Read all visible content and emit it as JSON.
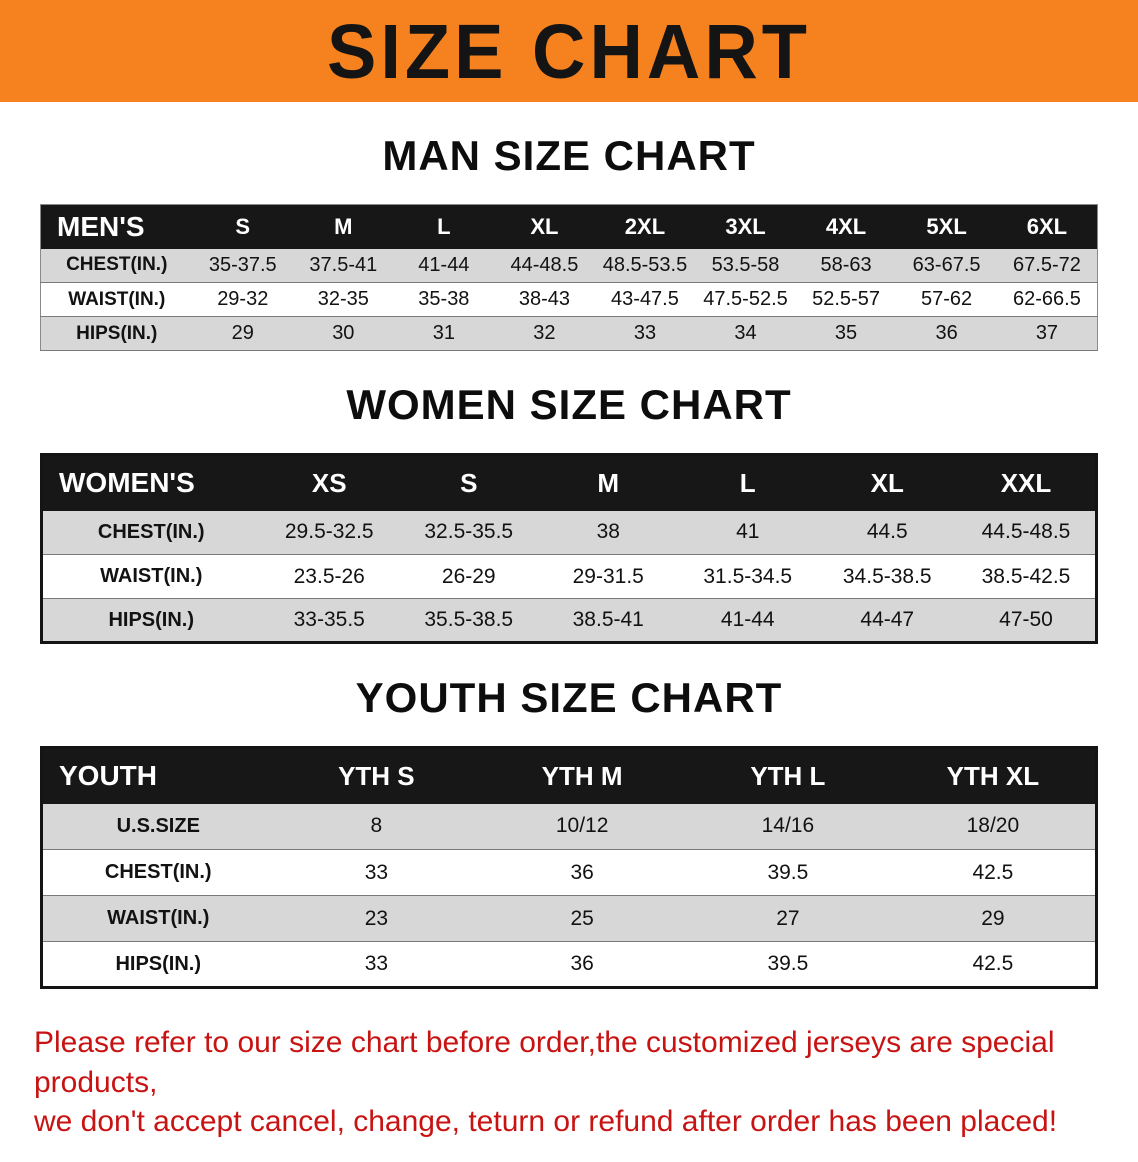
{
  "banner": {
    "title": "SIZE CHART"
  },
  "colors": {
    "banner_bg": "#f5821f",
    "header_bg": "#171717",
    "row_alt": "#d7d7d7",
    "footer_text": "#c81313"
  },
  "sections": [
    {
      "id": "men",
      "heading": "MAN SIZE CHART",
      "table": {
        "columns": [
          "MEN'S",
          "S",
          "M",
          "L",
          "XL",
          "2XL",
          "3XL",
          "4XL",
          "5XL",
          "6XL"
        ],
        "rows": [
          [
            "CHEST(IN.)",
            "35-37.5",
            "37.5-41",
            "41-44",
            "44-48.5",
            "48.5-53.5",
            "53.5-58",
            "58-63",
            "63-67.5",
            "67.5-72"
          ],
          [
            "WAIST(IN.)",
            "29-32",
            "32-35",
            "35-38",
            "38-43",
            "43-47.5",
            "47.5-52.5",
            "52.5-57",
            "57-62",
            "62-66.5"
          ],
          [
            "HIPS(IN.)",
            "29",
            "30",
            "31",
            "32",
            "33",
            "34",
            "35",
            "36",
            "37"
          ]
        ]
      }
    },
    {
      "id": "women",
      "heading": "WOMEN SIZE CHART",
      "table": {
        "columns": [
          "WOMEN'S",
          "XS",
          "S",
          "M",
          "L",
          "XL",
          "XXL"
        ],
        "rows": [
          [
            "CHEST(IN.)",
            "29.5-32.5",
            "32.5-35.5",
            "38",
            "41",
            "44.5",
            "44.5-48.5"
          ],
          [
            "WAIST(IN.)",
            "23.5-26",
            "26-29",
            "29-31.5",
            "31.5-34.5",
            "34.5-38.5",
            "38.5-42.5"
          ],
          [
            "HIPS(IN.)",
            "33-35.5",
            "35.5-38.5",
            "38.5-41",
            "41-44",
            "44-47",
            "47-50"
          ]
        ]
      }
    },
    {
      "id": "youth",
      "heading": "YOUTH SIZE CHART",
      "table": {
        "columns": [
          "YOUTH",
          "YTH S",
          "YTH M",
          "YTH L",
          "YTH XL"
        ],
        "rows": [
          [
            "U.S.SIZE",
            "8",
            "10/12",
            "14/16",
            "18/20"
          ],
          [
            "CHEST(IN.)",
            "33",
            "36",
            "39.5",
            "42.5"
          ],
          [
            "WAIST(IN.)",
            "23",
            "25",
            "27",
            "29"
          ],
          [
            "HIPS(IN.)",
            "33",
            "36",
            "39.5",
            "42.5"
          ]
        ]
      }
    }
  ],
  "footer": {
    "line1": "Please refer to our size chart before order,the customized jerseys are special products,",
    "line2": "we don't accept cancel, change, teturn or refund after order has been placed!"
  }
}
